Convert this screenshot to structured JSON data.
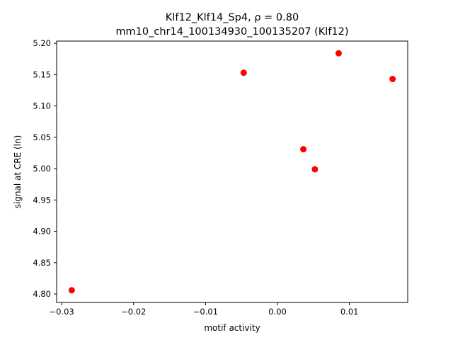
{
  "chart_data": {
    "type": "scatter",
    "title": "Klf12_Klf14_Sp4, ρ = 0.80",
    "subtitle": "mm10_chr14_100134930_100135207 (Klf12)",
    "xlabel": "motif activity",
    "ylabel": "signal at CRE (ln)",
    "xlim": [
      -0.0307,
      0.0181
    ],
    "ylim": [
      4.7865,
      5.2035
    ],
    "xticks": [
      -0.03,
      -0.02,
      -0.01,
      0.0,
      0.01
    ],
    "xtick_labels": [
      "−0.03",
      "−0.02",
      "−0.01",
      "0.00",
      "0.01"
    ],
    "yticks": [
      4.8,
      4.85,
      4.9,
      4.95,
      5.0,
      5.05,
      5.1,
      5.15,
      5.2
    ],
    "ytick_labels": [
      "4.80",
      "4.85",
      "4.90",
      "4.95",
      "5.00",
      "5.05",
      "5.10",
      "5.15",
      "5.20"
    ],
    "grid": false,
    "point_color": "#ff0000",
    "points": [
      {
        "x": -0.0286,
        "y": 4.806
      },
      {
        "x": -0.0047,
        "y": 5.153
      },
      {
        "x": 0.0036,
        "y": 5.031
      },
      {
        "x": 0.0052,
        "y": 4.999
      },
      {
        "x": 0.0085,
        "y": 5.184
      },
      {
        "x": 0.016,
        "y": 5.143
      }
    ]
  }
}
